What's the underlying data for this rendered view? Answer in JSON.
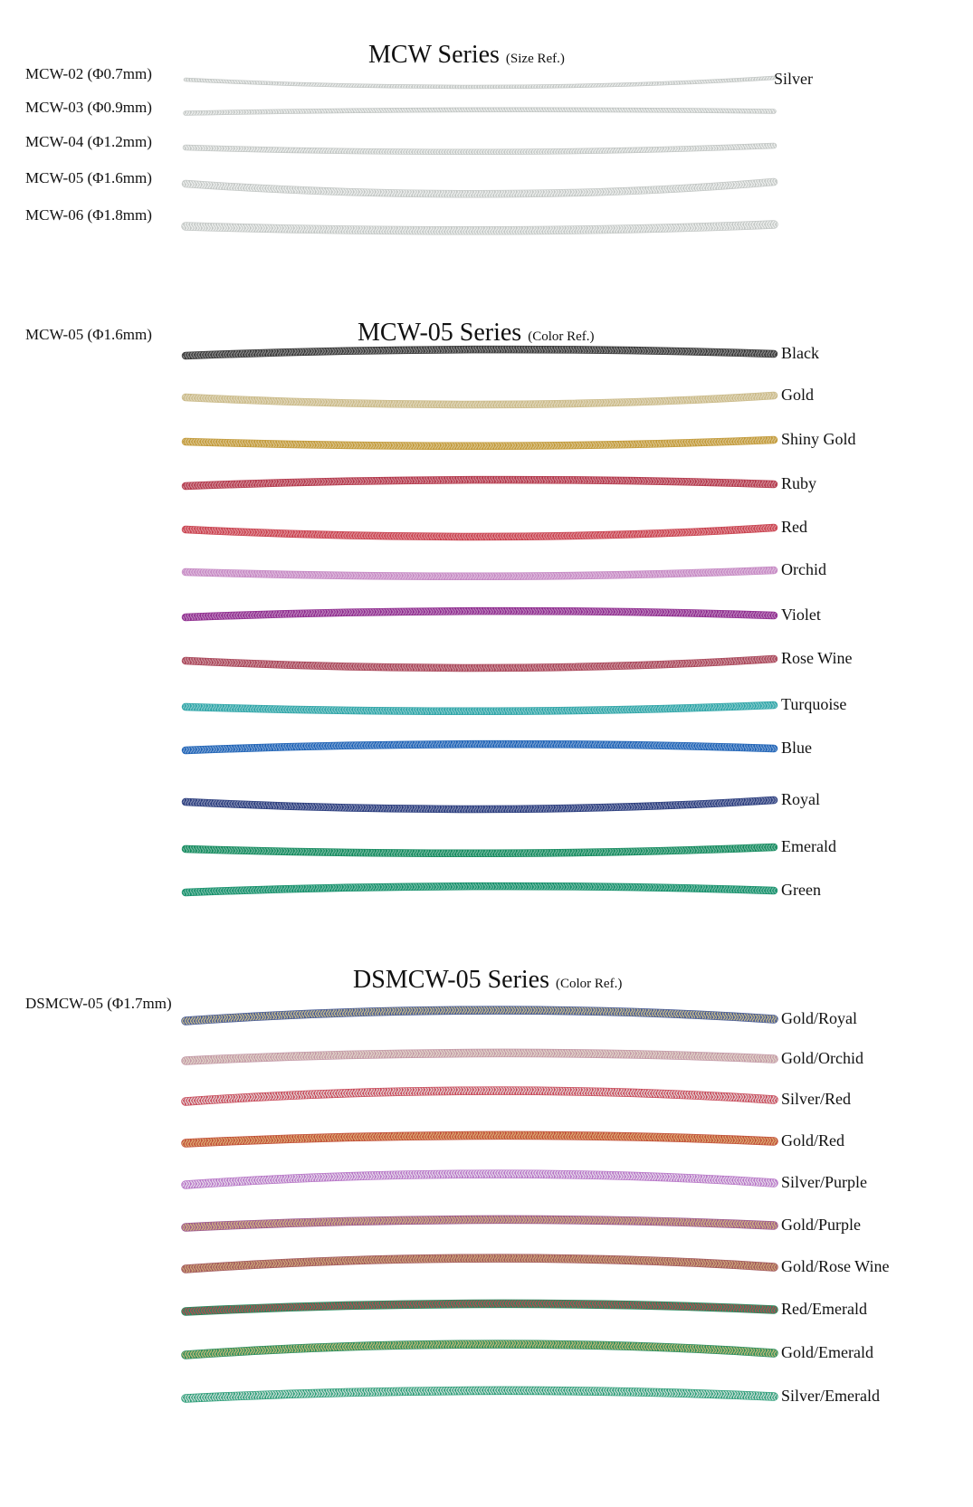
{
  "sections": [
    {
      "title": "MCW Series",
      "title_note": "(Size Ref.)",
      "size_labels": [
        "MCW-02 (Φ0.7mm)",
        "MCW-03 (Φ0.9mm)",
        "MCW-04 (Φ1.2mm)",
        "MCW-05 (Φ1.6mm)",
        "MCW-06 (Φ1.8mm)"
      ],
      "color_label": "Silver",
      "cord_color": "#c4c8c6"
    },
    {
      "title": "MCW-05 Series",
      "title_note": "(Color Ref.)",
      "size_label": "MCW-05 (Φ1.6mm)",
      "colors": [
        {
          "name": "Black",
          "hex": "#3a3a3a"
        },
        {
          "name": "Gold",
          "hex": "#cbbb8a"
        },
        {
          "name": "Shiny Gold",
          "hex": "#c29a3a"
        },
        {
          "name": "Ruby",
          "hex": "#b3394c"
        },
        {
          "name": "Red",
          "hex": "#c94350"
        },
        {
          "name": "Orchid",
          "hex": "#c68ac4"
        },
        {
          "name": "Violet",
          "hex": "#8f2d8f"
        },
        {
          "name": "Rose Wine",
          "hex": "#a9475a"
        },
        {
          "name": "Turquoise",
          "hex": "#2fa5a8"
        },
        {
          "name": "Blue",
          "hex": "#1f63b6"
        },
        {
          "name": "Royal",
          "hex": "#2c3e7e"
        },
        {
          "name": "Emerald",
          "hex": "#148a5e"
        },
        {
          "name": "Green",
          "hex": "#16906b"
        }
      ]
    },
    {
      "title": "DSMCW-05 Series",
      "title_note": "(Color Ref.)",
      "size_label": "DSMCW-05 (Φ1.7mm)",
      "colors": [
        {
          "name": "Gold/Royal",
          "hex": "#4a5d96",
          "hex2": "#d8c98a"
        },
        {
          "name": "Gold/Orchid",
          "hex": "#c49aa8",
          "hex2": "#e5dccb"
        },
        {
          "name": "Silver/Red",
          "hex": "#c94a5a",
          "hex2": "#e6e6e6"
        },
        {
          "name": "Gold/Red",
          "hex": "#c2503a",
          "hex2": "#dfb77a"
        },
        {
          "name": "Silver/Purple",
          "hex": "#b877c8",
          "hex2": "#ece6ef"
        },
        {
          "name": "Gold/Purple",
          "hex": "#9e5a8e",
          "hex2": "#d9c07c"
        },
        {
          "name": "Gold/Rose Wine",
          "hex": "#a35a5e",
          "hex2": "#d4b07a"
        },
        {
          "name": "Red/Emerald",
          "hex": "#2a8a5e",
          "hex2": "#c74050"
        },
        {
          "name": "Gold/Emerald",
          "hex": "#2d8f5e",
          "hex2": "#d4c07a"
        },
        {
          "name": "Silver/Emerald",
          "hex": "#2f9f7a",
          "hex2": "#dfe8e4"
        }
      ]
    }
  ]
}
